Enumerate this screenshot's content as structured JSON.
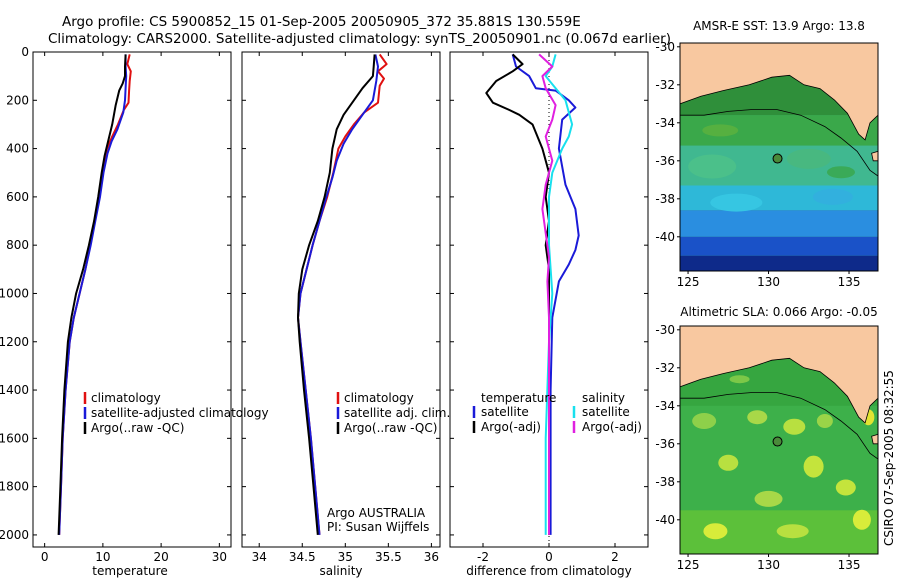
{
  "header": {
    "line1": "Argo profile: CS 5900852_15 01-Sep-2005 20050905_372 35.881S 130.559E",
    "line2": "Climatology: CARS2000. Satellite-adjusted climatology: synTS_20050901.nc (0.067d earlier)"
  },
  "side_label": "CSIRO 07-Sep-2005 08:32:55",
  "colors": {
    "climatology": "#e01010",
    "satellite": "#1a1ad8",
    "argo": "#000000",
    "salinity_satellite": "#18e0ee",
    "salinity_argo": "#e020e0",
    "land": "#f8c8a0",
    "float_marker": "#4a8a3a"
  },
  "chart_data": [
    {
      "type": "line",
      "xlabel": "temperature",
      "xlim": [
        -2,
        32
      ],
      "xticks": [
        0,
        10,
        20,
        30
      ],
      "ylim": [
        2050,
        0
      ],
      "yticks": [
        0,
        200,
        400,
        600,
        800,
        1000,
        1200,
        1400,
        1600,
        1800,
        2000
      ],
      "legend": {
        "placement": "lower-middle",
        "entries": [
          "climatology",
          "satellite-adjusted climatology",
          "Argo(..raw -QC)"
        ]
      },
      "series": [
        {
          "name": "climatology",
          "color_key": "climatology",
          "points": [
            [
              14.6,
              10
            ],
            [
              14.2,
              50
            ],
            [
              14.8,
              80
            ],
            [
              14.6,
              120
            ],
            [
              14.5,
              160
            ],
            [
              14.4,
              210
            ],
            [
              13.6,
              240
            ],
            [
              12.6,
              300
            ],
            [
              11.6,
              350
            ],
            [
              10.7,
              400
            ],
            [
              10.0,
              500
            ],
            [
              9.4,
              600
            ],
            [
              8.6,
              700
            ],
            [
              7.8,
              800
            ],
            [
              7.0,
              900
            ],
            [
              6.0,
              1000
            ],
            [
              5.0,
              1100
            ],
            [
              4.3,
              1200
            ],
            [
              3.6,
              1400
            ],
            [
              3.1,
              1600
            ],
            [
              2.8,
              1800
            ],
            [
              2.5,
              2000
            ]
          ]
        },
        {
          "name": "satellite-adjusted climatology",
          "color_key": "satellite",
          "points": [
            [
              13.9,
              10
            ],
            [
              13.9,
              60
            ],
            [
              14.0,
              100
            ],
            [
              13.9,
              150
            ],
            [
              13.8,
              200
            ],
            [
              13.5,
              250
            ],
            [
              12.5,
              320
            ],
            [
              11.5,
              370
            ],
            [
              10.8,
              420
            ],
            [
              10.1,
              500
            ],
            [
              9.5,
              600
            ],
            [
              8.7,
              700
            ],
            [
              7.9,
              800
            ],
            [
              7.0,
              900
            ],
            [
              6.0,
              1000
            ],
            [
              5.0,
              1100
            ],
            [
              4.3,
              1200
            ],
            [
              3.6,
              1400
            ],
            [
              3.1,
              1600
            ],
            [
              2.8,
              1800
            ],
            [
              2.5,
              2000
            ]
          ]
        },
        {
          "name": "Argo(..raw -QC)",
          "color_key": "argo",
          "points": [
            [
              13.9,
              10
            ],
            [
              13.8,
              60
            ],
            [
              13.8,
              100
            ],
            [
              13.4,
              130
            ],
            [
              12.8,
              160
            ],
            [
              12.2,
              220
            ],
            [
              11.6,
              300
            ],
            [
              11.0,
              360
            ],
            [
              10.3,
              430
            ],
            [
              9.8,
              500
            ],
            [
              9.2,
              600
            ],
            [
              8.5,
              700
            ],
            [
              7.6,
              800
            ],
            [
              6.6,
              900
            ],
            [
              5.4,
              1000
            ],
            [
              4.6,
              1100
            ],
            [
              4.0,
              1200
            ],
            [
              3.4,
              1400
            ],
            [
              3.0,
              1600
            ],
            [
              2.7,
              1800
            ],
            [
              2.4,
              2000
            ]
          ]
        }
      ]
    },
    {
      "type": "line",
      "xlabel": "salinity",
      "xlim": [
        33.8,
        36.1
      ],
      "xticks": [
        34,
        34.5,
        35,
        35.5,
        36
      ],
      "xticklabels": [
        "34",
        "34.5",
        "35",
        "35.5",
        "36"
      ],
      "ylim": [
        2050,
        0
      ],
      "legend": {
        "placement": "lower-middle",
        "entries": [
          "climatology",
          "satellite adj. clim.",
          "Argo(..raw -QC)"
        ]
      },
      "annotations": [
        "Argo AUSTRALIA",
        "PI: Susan Wijffels"
      ],
      "series": [
        {
          "name": "climatology",
          "color_key": "climatology",
          "points": [
            [
              35.4,
              10
            ],
            [
              35.48,
              50
            ],
            [
              35.38,
              80
            ],
            [
              35.45,
              110
            ],
            [
              35.4,
              140
            ],
            [
              35.38,
              210
            ],
            [
              35.22,
              250
            ],
            [
              35.1,
              300
            ],
            [
              35.0,
              350
            ],
            [
              34.92,
              400
            ],
            [
              34.86,
              500
            ],
            [
              34.79,
              600
            ],
            [
              34.7,
              700
            ],
            [
              34.62,
              800
            ],
            [
              34.55,
              900
            ],
            [
              34.48,
              1000
            ],
            [
              34.45,
              1100
            ],
            [
              34.48,
              1200
            ],
            [
              34.54,
              1400
            ],
            [
              34.6,
              1600
            ],
            [
              34.65,
              1800
            ],
            [
              34.7,
              2000
            ]
          ]
        },
        {
          "name": "satellite adj. clim.",
          "color_key": "satellite",
          "points": [
            [
              35.35,
              10
            ],
            [
              35.38,
              60
            ],
            [
              35.36,
              120
            ],
            [
              35.32,
              200
            ],
            [
              35.2,
              260
            ],
            [
              35.08,
              320
            ],
            [
              34.98,
              380
            ],
            [
              34.9,
              450
            ],
            [
              34.85,
              520
            ],
            [
              34.78,
              600
            ],
            [
              34.7,
              700
            ],
            [
              34.62,
              800
            ],
            [
              34.55,
              900
            ],
            [
              34.48,
              1000
            ],
            [
              34.45,
              1100
            ],
            [
              34.48,
              1200
            ],
            [
              34.54,
              1400
            ],
            [
              34.6,
              1600
            ],
            [
              34.65,
              1800
            ],
            [
              34.7,
              2000
            ]
          ]
        },
        {
          "name": "Argo(..raw -QC)",
          "color_key": "argo",
          "points": [
            [
              35.34,
              10
            ],
            [
              35.33,
              60
            ],
            [
              35.32,
              100
            ],
            [
              35.2,
              150
            ],
            [
              35.1,
              200
            ],
            [
              34.98,
              260
            ],
            [
              34.9,
              320
            ],
            [
              34.85,
              400
            ],
            [
              34.82,
              500
            ],
            [
              34.76,
              600
            ],
            [
              34.68,
              700
            ],
            [
              34.58,
              800
            ],
            [
              34.5,
              900
            ],
            [
              34.46,
              1000
            ],
            [
              34.45,
              1100
            ],
            [
              34.47,
              1200
            ],
            [
              34.52,
              1400
            ],
            [
              34.58,
              1600
            ],
            [
              34.63,
              1800
            ],
            [
              34.68,
              2000
            ]
          ]
        }
      ]
    },
    {
      "type": "line",
      "xlabel": "difference from climatology",
      "xlim": [
        -3,
        3
      ],
      "xticks": [
        -2,
        0,
        2
      ],
      "zero_line": "dotted",
      "ylim": [
        2050,
        0
      ],
      "legend": {
        "placement": "lower-middle",
        "columns": [
          {
            "heading": "temperature",
            "entries": [
              "satellite",
              "Argo(-adj)"
            ]
          },
          {
            "heading": "salinity",
            "entries": [
              "satellite",
              "Argo(-adj)"
            ]
          }
        ]
      },
      "series": [
        {
          "name": "temperature satellite",
          "color_key": "satellite",
          "points": [
            [
              -1.1,
              10
            ],
            [
              -1.0,
              60
            ],
            [
              -0.6,
              100
            ],
            [
              -0.4,
              150
            ],
            [
              0.2,
              160
            ],
            [
              0.6,
              200
            ],
            [
              0.8,
              230
            ],
            [
              0.4,
              280
            ],
            [
              0.3,
              400
            ],
            [
              0.5,
              550
            ],
            [
              0.8,
              650
            ],
            [
              0.9,
              760
            ],
            [
              0.8,
              820
            ],
            [
              0.6,
              880
            ],
            [
              0.3,
              950
            ],
            [
              0.1,
              1100
            ],
            [
              0.05,
              1400
            ],
            [
              0.05,
              2000
            ]
          ]
        },
        {
          "name": "temperature Argo(-adj)",
          "color_key": "argo",
          "points": [
            [
              -1.1,
              10
            ],
            [
              -0.8,
              50
            ],
            [
              -1.1,
              80
            ],
            [
              -1.6,
              120
            ],
            [
              -1.9,
              170
            ],
            [
              -1.7,
              210
            ],
            [
              -1.2,
              240
            ],
            [
              -0.9,
              260
            ],
            [
              -0.5,
              300
            ],
            [
              -0.2,
              400
            ],
            [
              0.0,
              500
            ],
            [
              -0.1,
              600
            ],
            [
              0.0,
              700
            ],
            [
              -0.1,
              800
            ],
            [
              0.0,
              900
            ],
            [
              0.0,
              1200
            ],
            [
              0.0,
              2000
            ]
          ]
        },
        {
          "name": "salinity satellite",
          "color_key": "salinity_satellite",
          "points": [
            [
              0.2,
              10
            ],
            [
              0.1,
              60
            ],
            [
              -0.1,
              100
            ],
            [
              0.2,
              150
            ],
            [
              0.5,
              200
            ],
            [
              0.6,
              250
            ],
            [
              0.7,
              300
            ],
            [
              0.6,
              350
            ],
            [
              0.4,
              400
            ],
            [
              0.1,
              500
            ],
            [
              0.0,
              600
            ],
            [
              0.0,
              800
            ],
            [
              0.1,
              1000
            ],
            [
              0.0,
              1200
            ],
            [
              -0.1,
              1600
            ],
            [
              -0.1,
              2000
            ]
          ]
        },
        {
          "name": "salinity Argo(-adj)",
          "color_key": "salinity_argo",
          "points": [
            [
              -0.3,
              10
            ],
            [
              0.1,
              60
            ],
            [
              -0.2,
              100
            ],
            [
              -0.1,
              150
            ],
            [
              0.2,
              220
            ],
            [
              0.1,
              280
            ],
            [
              -0.1,
              350
            ],
            [
              0.0,
              400
            ],
            [
              0.1,
              450
            ],
            [
              0.0,
              500
            ],
            [
              -0.1,
              550
            ],
            [
              -0.2,
              650
            ],
            [
              -0.1,
              750
            ],
            [
              0.0,
              850
            ],
            [
              -0.05,
              950
            ],
            [
              0.0,
              1100
            ],
            [
              0.0,
              2000
            ]
          ]
        }
      ]
    },
    {
      "type": "heatmap",
      "title": "AMSR-E SST: 13.9  Argo: 13.8",
      "xlim": [
        124.5,
        136.8
      ],
      "xticks": [
        125,
        130,
        135
      ],
      "ylim": [
        -41.8,
        -29.8
      ],
      "yticks": [
        -30,
        -32,
        -34,
        -36,
        -38,
        -40
      ],
      "field": "sst",
      "float_position": [
        130.559,
        -35.881
      ]
    },
    {
      "type": "heatmap",
      "title": "Altimetric SLA: 0.066  Argo: -0.05",
      "xlim": [
        124.5,
        136.8
      ],
      "xticks": [
        125,
        130,
        135
      ],
      "ylim": [
        -41.8,
        -29.8
      ],
      "yticks": [
        -30,
        -32,
        -34,
        -36,
        -38,
        -40
      ],
      "field": "sla",
      "float_position": [
        130.559,
        -35.881
      ]
    }
  ]
}
